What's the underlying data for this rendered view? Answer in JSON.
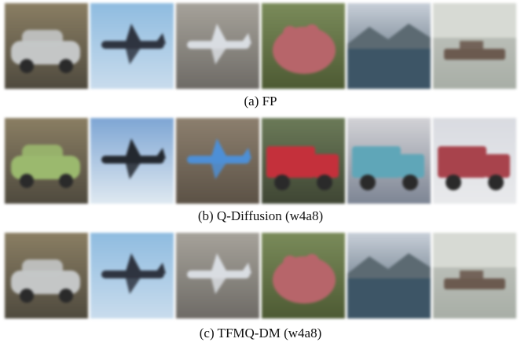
{
  "figure": {
    "rows": [
      {
        "caption": "(a) FP",
        "tiles": [
          {
            "subject": "car",
            "bg": [
              "#8a7e63",
              "#4f4a3e"
            ],
            "fg": "#c4c6c6"
          },
          {
            "subject": "airplane",
            "bg": [
              "#8fbce0",
              "#c9dced"
            ],
            "fg": "#2e3440"
          },
          {
            "subject": "airplane",
            "bg": [
              "#a6a29a",
              "#6e6b66"
            ],
            "fg": "#d9dde2"
          },
          {
            "subject": "frog",
            "bg": [
              "#7a8b5a",
              "#4d5a33"
            ],
            "fg": "#b7656a"
          },
          {
            "subject": "lake",
            "bg": [
              "#c8cfd8",
              "#45596a"
            ],
            "fg": "#5c6a72"
          },
          {
            "subject": "boat",
            "bg": [
              "#c5c8c2",
              "#a8aea6"
            ],
            "fg": "#6b5a4f"
          }
        ]
      },
      {
        "caption": "(b) Q-Diffusion (w4a8)",
        "tiles": [
          {
            "subject": "car",
            "bg": [
              "#8a7e63",
              "#4f4a3e"
            ],
            "fg": "#9bb96e"
          },
          {
            "subject": "airplane",
            "bg": [
              "#7ea6d4",
              "#dfe9f1"
            ],
            "fg": "#23282f"
          },
          {
            "subject": "airplane",
            "bg": [
              "#8c7f6e",
              "#5c5246"
            ],
            "fg": "#4d8fd6"
          },
          {
            "subject": "truck",
            "bg": [
              "#6b7a58",
              "#3f4634"
            ],
            "fg": "#c4303b"
          },
          {
            "subject": "truck",
            "bg": [
              "#d2d2d6",
              "#7d8594"
            ],
            "fg": "#5fa6b8"
          },
          {
            "subject": "truck",
            "bg": [
              "#d9dbe1",
              "#e9eaec"
            ],
            "fg": "#a8434c"
          }
        ]
      },
      {
        "caption": "(c) TFMQ-DM (w4a8)",
        "tiles": [
          {
            "subject": "car",
            "bg": [
              "#8a7e63",
              "#4f4a3e"
            ],
            "fg": "#c4c6c6"
          },
          {
            "subject": "airplane",
            "bg": [
              "#8fbce0",
              "#c9dced"
            ],
            "fg": "#2e3440"
          },
          {
            "subject": "airplane",
            "bg": [
              "#a6a29a",
              "#6e6b66"
            ],
            "fg": "#d9dde2"
          },
          {
            "subject": "frog",
            "bg": [
              "#7a8b5a",
              "#4d5a33"
            ],
            "fg": "#b7656a"
          },
          {
            "subject": "lake",
            "bg": [
              "#c8cfd8",
              "#45596a"
            ],
            "fg": "#5c6a72"
          },
          {
            "subject": "boat",
            "bg": [
              "#c5c8c2",
              "#a8aea6"
            ],
            "fg": "#6b5a4f"
          }
        ]
      }
    ]
  }
}
